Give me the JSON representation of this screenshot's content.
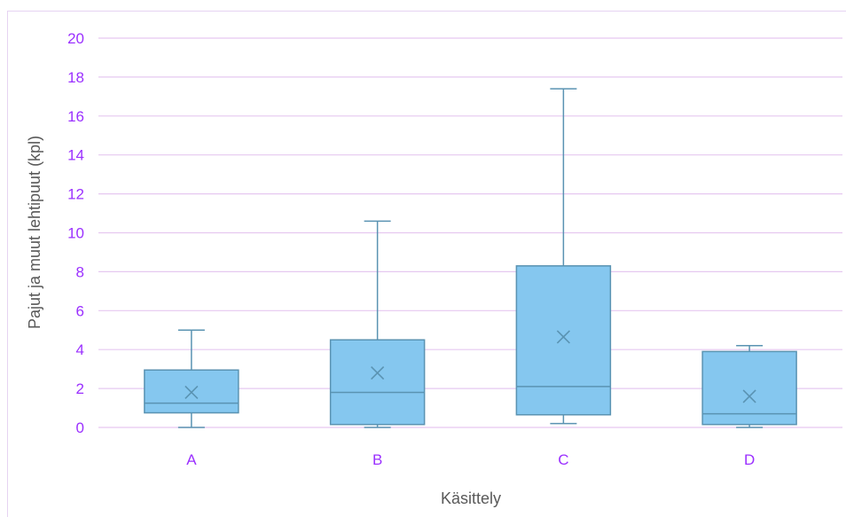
{
  "chart_data": {
    "type": "box",
    "title": "",
    "xlabel": "Käsittely",
    "ylabel": "Pajut ja muut lehtipuut (kpl)",
    "ylim": [
      0,
      20
    ],
    "yticks": [
      "0",
      "2",
      "4",
      "6",
      "8",
      "10",
      "12",
      "14",
      "16",
      "18",
      "20"
    ],
    "grid": true,
    "categories": [
      "A",
      "B",
      "C",
      "D"
    ],
    "boxes": [
      {
        "category": "A",
        "min": 0.0,
        "q1": 0.75,
        "median": 1.25,
        "q3": 2.95,
        "max": 5.0,
        "mean": 1.8
      },
      {
        "category": "B",
        "min": 0.0,
        "q1": 0.15,
        "median": 1.8,
        "q3": 4.5,
        "max": 10.6,
        "mean": 2.8
      },
      {
        "category": "C",
        "min": 0.2,
        "q1": 0.65,
        "median": 2.1,
        "q3": 8.3,
        "max": 17.4,
        "mean": 4.65
      },
      {
        "category": "D",
        "min": 0.0,
        "q1": 0.15,
        "median": 0.7,
        "q3": 3.9,
        "max": 4.2,
        "mean": 1.6
      }
    ],
    "colors": {
      "box_fill": "#85c7ef",
      "box_stroke": "#5a93b2",
      "whisker": "#5a93b2",
      "gridline": "#e6c8f0",
      "axis_text": "#9b30ff",
      "label_text": "#595959"
    }
  }
}
